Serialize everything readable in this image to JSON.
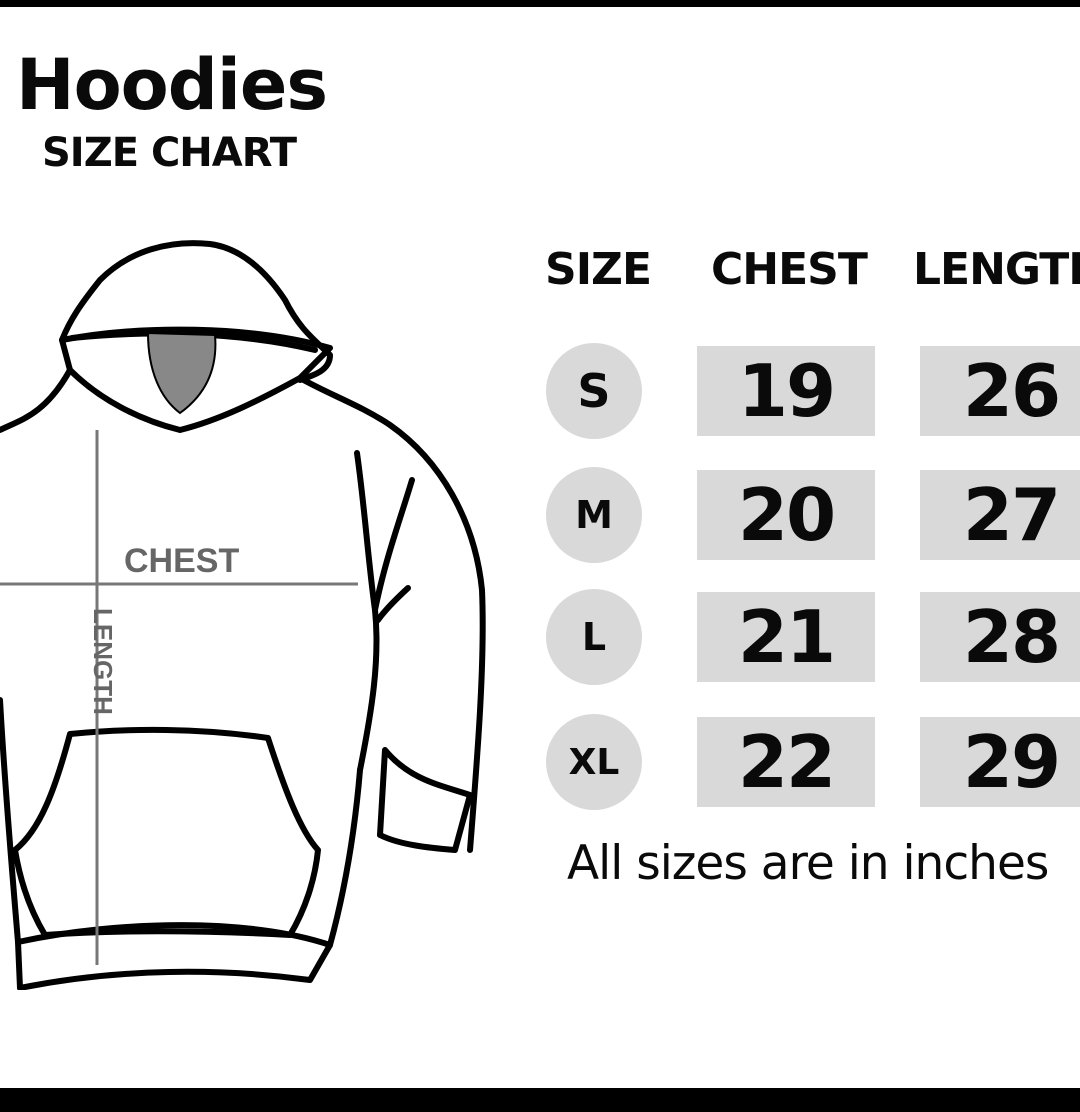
{
  "title": "Hoodies",
  "subtitle": "SIZE CHART",
  "diagram": {
    "chest_label": "CHEST",
    "length_label": "LENGTH"
  },
  "table": {
    "headers": [
      "SIZE",
      "CHEST",
      "LENGTH"
    ],
    "rows": [
      {
        "size": "S",
        "chest": "19",
        "length": "26"
      },
      {
        "size": "M",
        "chest": "20",
        "length": "27"
      },
      {
        "size": "L",
        "chest": "21",
        "length": "28"
      },
      {
        "size": "XL",
        "chest": "22",
        "length": "29"
      }
    ]
  },
  "note": "All sizes are in inches",
  "colors": {
    "cell_bg": "#d9d9d9",
    "measure_line": "#777777",
    "hood_inner": "#888888"
  }
}
